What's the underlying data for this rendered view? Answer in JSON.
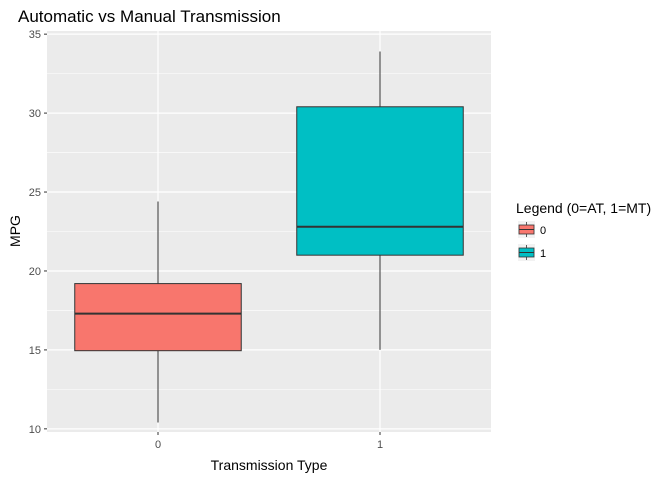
{
  "chart_data": {
    "type": "boxplot",
    "title": "Automatic vs Manual Transmission",
    "xlabel": "Transmission Type",
    "ylabel": "MPG",
    "categories": [
      "0",
      "1"
    ],
    "ylim": [
      9.8,
      35.2
    ],
    "yticks": [
      10,
      15,
      20,
      25,
      30,
      35
    ],
    "grid": true,
    "legend": {
      "title": "Legend (0=AT, 1=MT)",
      "placement": "right",
      "entries": [
        "0",
        "1"
      ]
    },
    "series": [
      {
        "category": "0",
        "color": "#F8766D",
        "min": 10.4,
        "q1": 14.95,
        "median": 17.3,
        "q3": 19.2,
        "max": 24.4
      },
      {
        "category": "1",
        "color": "#00BFC4",
        "min": 15.0,
        "q1": 21.0,
        "median": 22.8,
        "q3": 30.4,
        "max": 33.9
      }
    ]
  }
}
